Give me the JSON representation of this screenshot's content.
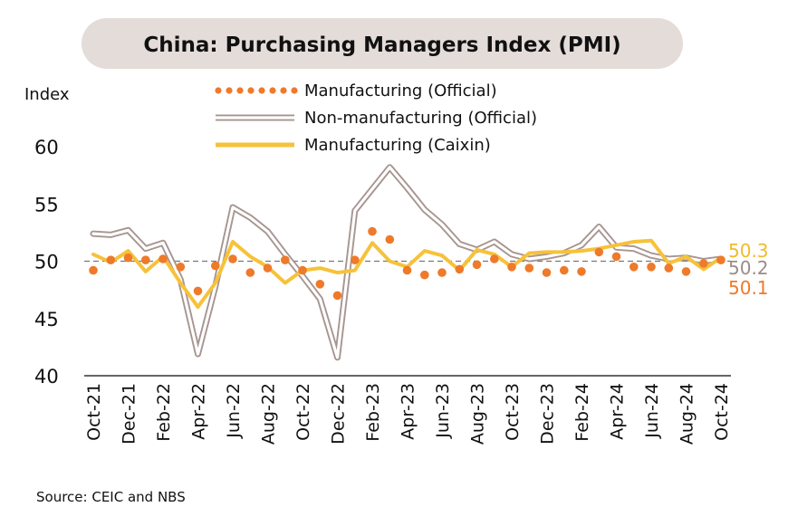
{
  "title": "China: Purchasing Managers Index (PMI)",
  "source": "Source: CEIC and NBS",
  "colors": {
    "manufacturing_official": "#ee7a2a",
    "non_manufacturing_outer": "#a79591",
    "manufacturing_caixin": "#f7c239",
    "reference_line": "#777777",
    "axis": "#333333",
    "title_bg": "#e4dcd9"
  },
  "end_labels": [
    {
      "text": "50.3",
      "series": "Manufacturing (Caixin)",
      "color": "#f2ba2b"
    },
    {
      "text": "50.2",
      "series": "Non-manufacturing (Official)",
      "color": "#9a8d89"
    },
    {
      "text": "50.1",
      "series": "Manufacturing (Official)",
      "color": "#ee7a2a"
    }
  ],
  "chart_data": {
    "type": "line",
    "title": "China: Purchasing Managers Index (PMI)",
    "ylabel": "Index",
    "xlabel": "",
    "ylim": [
      40,
      60
    ],
    "yticks": [
      40,
      45,
      50,
      55,
      60
    ],
    "reference_line": 50,
    "legend_position": "top",
    "x": [
      "Oct-21",
      "Nov-21",
      "Dec-21",
      "Jan-22",
      "Feb-22",
      "Mar-22",
      "Apr-22",
      "May-22",
      "Jun-22",
      "Jul-22",
      "Aug-22",
      "Sep-22",
      "Oct-22",
      "Nov-22",
      "Dec-22",
      "Jan-23",
      "Feb-23",
      "Mar-23",
      "Apr-23",
      "May-23",
      "Jun-23",
      "Jul-23",
      "Aug-23",
      "Sep-23",
      "Oct-23",
      "Nov-23",
      "Dec-23",
      "Jan-24",
      "Feb-24",
      "Mar-24",
      "Apr-24",
      "May-24",
      "Jun-24",
      "Jul-24",
      "Aug-24",
      "Sep-24",
      "Oct-24"
    ],
    "xtick_labels": [
      "Oct-21",
      "Dec-21",
      "Feb-22",
      "Apr-22",
      "Jun-22",
      "Aug-22",
      "Oct-22",
      "Dec-22",
      "Feb-23",
      "Apr-23",
      "Jun-23",
      "Aug-23",
      "Oct-23",
      "Dec-23",
      "Feb-24",
      "Apr-24",
      "Jun-24",
      "Aug-24",
      "Oct-24"
    ],
    "series": [
      {
        "name": "Manufacturing (Official)",
        "style": "dotted",
        "values": [
          49.2,
          50.1,
          50.3,
          50.1,
          50.2,
          49.5,
          47.4,
          49.6,
          50.2,
          49.0,
          49.4,
          50.1,
          49.2,
          48.0,
          47.0,
          50.1,
          52.6,
          51.9,
          49.2,
          48.8,
          49.0,
          49.3,
          49.7,
          50.2,
          49.5,
          49.4,
          49.0,
          49.2,
          49.1,
          50.8,
          50.4,
          49.5,
          49.5,
          49.4,
          49.1,
          49.8,
          50.1
        ]
      },
      {
        "name": "Non-manufacturing (Official)",
        "style": "double",
        "values": [
          52.4,
          52.3,
          52.7,
          51.1,
          51.6,
          48.4,
          41.9,
          47.8,
          54.7,
          53.8,
          52.6,
          50.6,
          48.7,
          46.7,
          41.6,
          54.4,
          56.3,
          58.2,
          56.4,
          54.5,
          53.2,
          51.5,
          51.0,
          51.7,
          50.6,
          50.2,
          50.4,
          50.7,
          51.4,
          53.0,
          51.2,
          51.1,
          50.5,
          50.2,
          50.3,
          50.0,
          50.2
        ]
      },
      {
        "name": "Manufacturing (Caixin)",
        "style": "solid",
        "values": [
          50.6,
          49.9,
          50.9,
          49.1,
          50.4,
          48.1,
          46.0,
          48.1,
          51.7,
          50.4,
          49.5,
          48.1,
          49.2,
          49.4,
          49.0,
          49.2,
          51.6,
          50.0,
          49.5,
          50.9,
          50.5,
          49.2,
          51.0,
          50.6,
          49.5,
          50.7,
          50.8,
          50.8,
          50.9,
          51.1,
          51.4,
          51.7,
          51.8,
          49.8,
          50.4,
          49.3,
          50.3
        ]
      }
    ]
  }
}
